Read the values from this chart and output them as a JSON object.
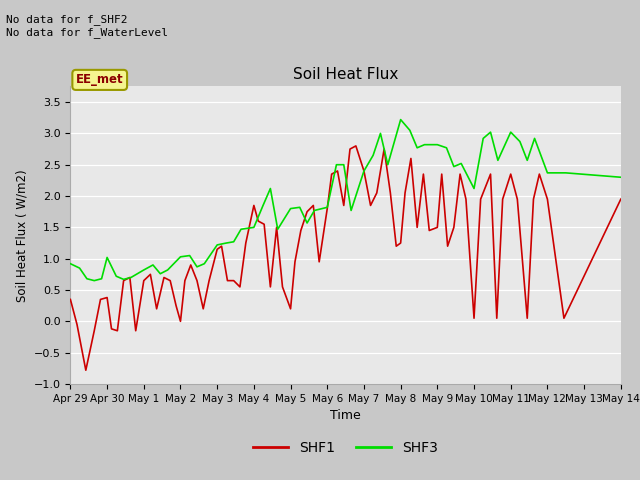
{
  "title": "Soil Heat Flux",
  "xlabel": "Time",
  "ylabel": "Soil Heat Flux ( W/m2)",
  "ylim": [
    -1.0,
    3.75
  ],
  "yticks": [
    -1.0,
    -0.5,
    0.0,
    0.5,
    1.0,
    1.5,
    2.0,
    2.5,
    3.0,
    3.5
  ],
  "xtick_labels": [
    "Apr 29",
    "Apr 30",
    "May 1",
    "May 2",
    "May 3",
    "May 4",
    "May 5",
    "May 6",
    "May 7",
    "May 8",
    "May 9",
    "May 10",
    "May 11",
    "May 12",
    "May 13",
    "May 14"
  ],
  "annotation_text": "No data for f_SHF2\nNo data for f_WaterLevel",
  "box_label": "EE_met",
  "shf1_color": "#cc0000",
  "shf3_color": "#00dd00",
  "fig_bg_color": "#c8c8c8",
  "plot_bg_color": "#e8e8e8",
  "grid_color": "#ffffff",
  "shf1_x": [
    0,
    0.18,
    0.42,
    0.65,
    0.82,
    1.0,
    1.12,
    1.28,
    1.45,
    1.62,
    1.78,
    2.0,
    2.18,
    2.35,
    2.55,
    2.72,
    2.88,
    3.0,
    3.12,
    3.28,
    3.45,
    3.62,
    3.78,
    4.0,
    4.12,
    4.28,
    4.45,
    4.62,
    4.78,
    5.0,
    5.12,
    5.28,
    5.45,
    5.62,
    5.78,
    6.0,
    6.12,
    6.28,
    6.45,
    6.62,
    6.78,
    7.0,
    7.12,
    7.28,
    7.45,
    7.62,
    7.78,
    8.0,
    8.18,
    8.35,
    8.55,
    8.72,
    8.88,
    9.0,
    9.12,
    9.28,
    9.45,
    9.62,
    9.78,
    10.0,
    10.12,
    10.28,
    10.45,
    10.62,
    10.78,
    11.0,
    11.18,
    11.45,
    11.62,
    11.78,
    12.0,
    12.18,
    12.45,
    12.62,
    12.78,
    13.0,
    13.45,
    15.0
  ],
  "shf1_y": [
    0.35,
    -0.05,
    -0.78,
    -0.15,
    0.35,
    0.38,
    -0.12,
    -0.15,
    0.65,
    0.7,
    -0.15,
    0.65,
    0.75,
    0.2,
    0.7,
    0.65,
    0.25,
    0.0,
    0.65,
    0.9,
    0.65,
    0.2,
    0.65,
    1.15,
    1.2,
    0.65,
    0.65,
    0.55,
    1.25,
    1.85,
    1.6,
    1.55,
    0.55,
    1.5,
    0.55,
    0.2,
    0.95,
    1.45,
    1.75,
    1.85,
    0.95,
    1.8,
    2.35,
    2.4,
    1.85,
    2.75,
    2.8,
    2.4,
    1.85,
    2.05,
    2.75,
    2.05,
    1.2,
    1.25,
    2.05,
    2.6,
    1.5,
    2.35,
    1.45,
    1.5,
    2.35,
    1.2,
    1.5,
    2.35,
    1.95,
    0.05,
    1.95,
    2.35,
    0.05,
    1.95,
    2.35,
    1.95,
    0.05,
    1.95,
    2.35,
    1.95,
    0.05,
    1.95
  ],
  "shf3_x": [
    0,
    0.25,
    0.45,
    0.65,
    0.85,
    1.0,
    1.25,
    1.45,
    1.65,
    2.0,
    2.25,
    2.45,
    2.65,
    3.0,
    3.25,
    3.45,
    3.65,
    4.0,
    4.25,
    4.45,
    4.65,
    5.0,
    5.25,
    5.45,
    5.65,
    6.0,
    6.25,
    6.45,
    6.65,
    7.0,
    7.25,
    7.45,
    7.65,
    8.0,
    8.25,
    8.45,
    8.65,
    9.0,
    9.25,
    9.45,
    9.65,
    10.0,
    10.25,
    10.45,
    10.65,
    11.0,
    11.25,
    11.45,
    11.65,
    12.0,
    12.25,
    12.45,
    12.65,
    13.0,
    13.5,
    15.0
  ],
  "shf3_y": [
    0.92,
    0.85,
    0.68,
    0.65,
    0.68,
    1.02,
    0.72,
    0.67,
    0.7,
    0.82,
    0.9,
    0.76,
    0.82,
    1.03,
    1.05,
    0.87,
    0.92,
    1.22,
    1.25,
    1.27,
    1.47,
    1.5,
    1.85,
    2.12,
    1.47,
    1.8,
    1.82,
    1.57,
    1.77,
    1.82,
    2.5,
    2.5,
    1.77,
    2.4,
    2.65,
    3.0,
    2.5,
    3.22,
    3.05,
    2.77,
    2.82,
    2.82,
    2.77,
    2.47,
    2.52,
    2.12,
    2.92,
    3.02,
    2.57,
    3.02,
    2.87,
    2.57,
    2.92,
    2.37,
    2.37,
    2.3
  ]
}
